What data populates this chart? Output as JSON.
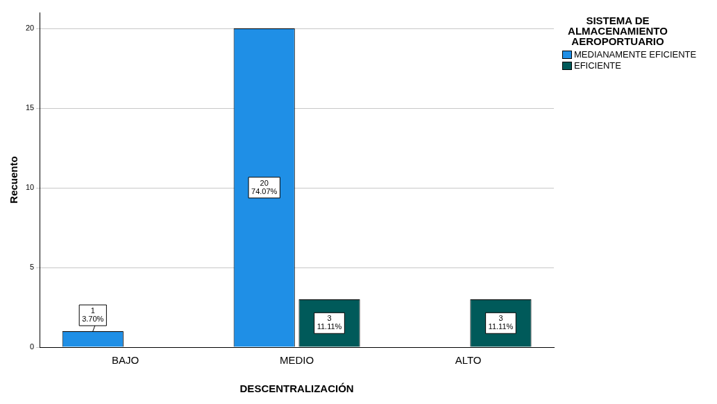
{
  "chart_data": {
    "type": "bar",
    "xlabel": "DESCENTRALIZACIÓN",
    "ylabel": "Recuento",
    "legend_title": "SISTEMA DE ALMACENAMIENTO AEROPORTUARIO",
    "categories": [
      "BAJO",
      "MEDIO",
      "ALTO"
    ],
    "series": [
      {
        "name": "MEDIANAMENTE EFICIENTE",
        "color": "#1f8fe6",
        "values": [
          1,
          20,
          null
        ],
        "value_labels": [
          "1\n3.70%",
          "20\n74.07%",
          null
        ]
      },
      {
        "name": "EFICIENTE",
        "color": "#005a5a",
        "values": [
          null,
          3,
          3
        ],
        "value_labels": [
          null,
          "3\n11.11%",
          "3\n11.11%"
        ]
      }
    ],
    "ylim": [
      0,
      21
    ],
    "yticks": [
      0,
      5,
      10,
      15,
      20
    ],
    "grid": "y",
    "legend": "right"
  }
}
